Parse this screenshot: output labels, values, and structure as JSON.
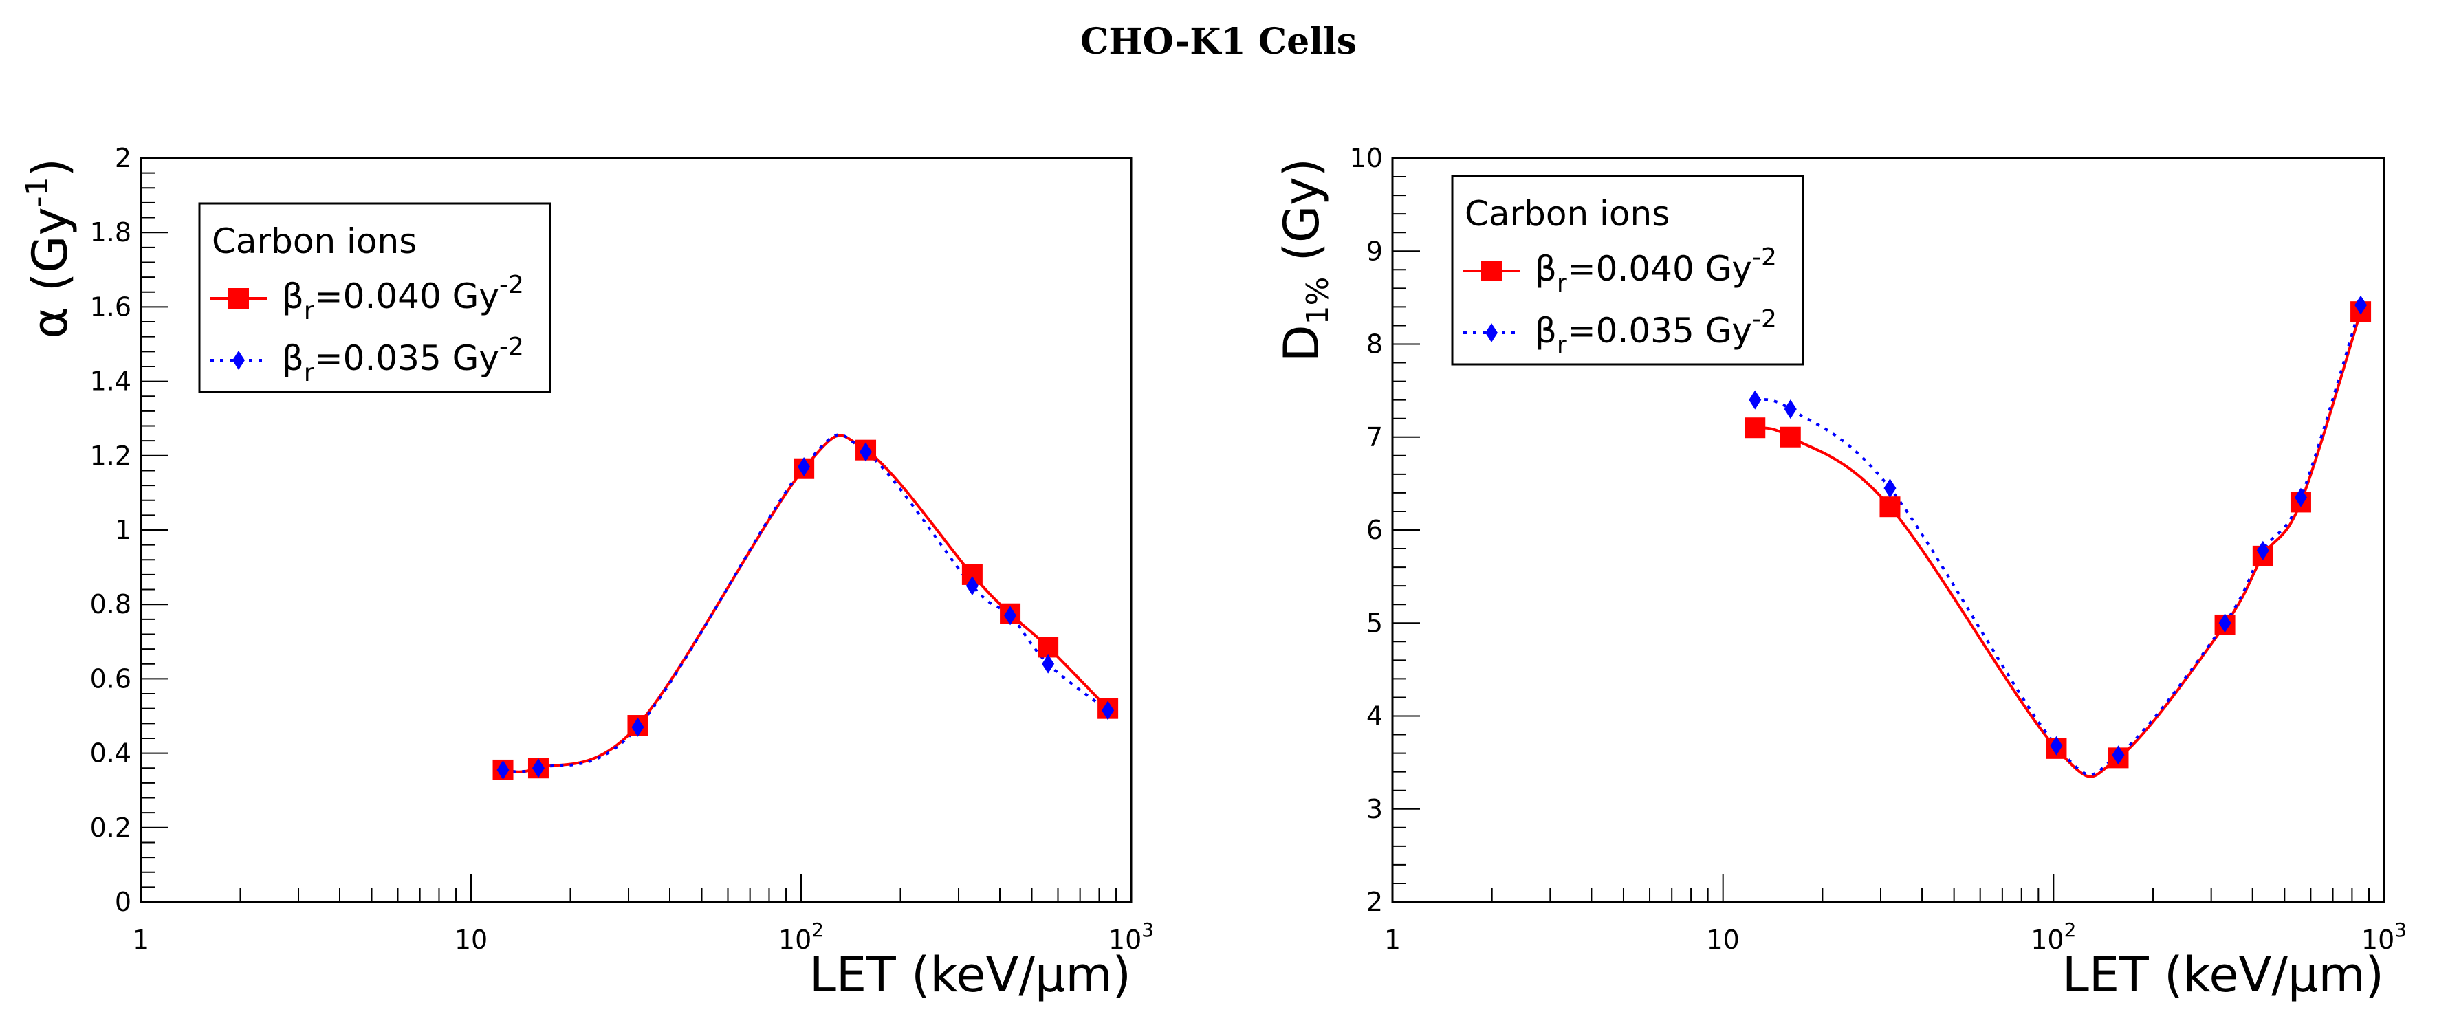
{
  "title": "CHO-K1 Cells",
  "chart_data": [
    {
      "type": "line",
      "xlabel": "LET (keV/μm)",
      "ylabel": "α (Gy⁻¹)",
      "xscale": "log",
      "xlim": [
        1,
        1000
      ],
      "ylim": [
        0,
        2
      ],
      "yticks": [
        "0",
        "0.2",
        "0.4",
        "0.6",
        "0.8",
        "1",
        "1.2",
        "1.4",
        "1.6",
        "1.8",
        "2"
      ],
      "xticks": [
        "1",
        "10",
        "10²",
        "10³"
      ],
      "legend": {
        "title": "Carbon ions",
        "placement": "top-left",
        "entries": [
          {
            "base": "β",
            "sub": "r",
            "text": "=0.040 Gy",
            "sup": "-2"
          },
          {
            "base": "β",
            "sub": "r",
            "text": "=0.035 Gy",
            "sup": "-2"
          }
        ]
      },
      "series": [
        {
          "style": "solid",
          "marker": "square",
          "color": "#ff0000",
          "x": [
            12.5,
            16,
            32,
            102,
            157,
            330,
            430,
            560,
            850
          ],
          "y": [
            0.355,
            0.36,
            0.475,
            1.165,
            1.215,
            0.88,
            0.775,
            0.685,
            0.52
          ]
        },
        {
          "style": "dotted",
          "marker": "diamond",
          "color": "#0000ff",
          "x": [
            12.5,
            16,
            32,
            102,
            157,
            330,
            430,
            560,
            850
          ],
          "y": [
            0.355,
            0.36,
            0.47,
            1.17,
            1.21,
            0.85,
            0.77,
            0.64,
            0.515
          ]
        }
      ]
    },
    {
      "type": "line",
      "xlabel": "LET (keV/μm)",
      "ylabel": "D1% (Gy)",
      "xscale": "log",
      "xlim": [
        1,
        1000
      ],
      "ylim": [
        2,
        10
      ],
      "yticks": [
        "2",
        "3",
        "4",
        "5",
        "6",
        "7",
        "8",
        "9",
        "10"
      ],
      "xticks": [
        "1",
        "10",
        "10²",
        "10³"
      ],
      "legend": {
        "title": "Carbon ions",
        "placement": "top-left",
        "entries": [
          {
            "base": "β",
            "sub": "r",
            "text": "=0.040 Gy",
            "sup": "-2"
          },
          {
            "base": "β",
            "sub": "r",
            "text": "=0.035 Gy",
            "sup": "-2"
          }
        ]
      },
      "series": [
        {
          "style": "solid",
          "marker": "square",
          "color": "#ff0000",
          "x": [
            12.5,
            16,
            32,
            102,
            157,
            330,
            430,
            560,
            850
          ],
          "y": [
            7.1,
            7.0,
            6.25,
            3.65,
            3.55,
            4.98,
            5.72,
            6.3,
            8.35
          ]
        },
        {
          "style": "dotted",
          "marker": "diamond",
          "color": "#0000ff",
          "x": [
            12.5,
            16,
            32,
            102,
            157,
            330,
            430,
            560,
            850
          ],
          "y": [
            7.4,
            7.3,
            6.45,
            3.68,
            3.58,
            5.0,
            5.78,
            6.35,
            8.42
          ]
        }
      ]
    }
  ]
}
